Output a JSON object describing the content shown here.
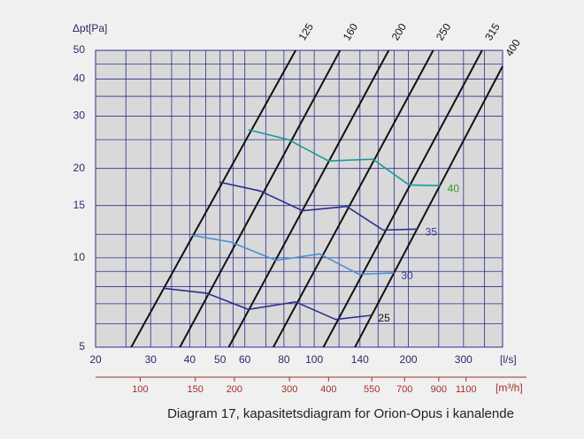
{
  "chart_data": {
    "type": "line",
    "ylabel": "Δpt[Pa]",
    "xlabel": "[l/s]",
    "x2label": "[m³/h]",
    "caption": "Diagram 17, kapasitetsdiagram for Orion-Opus i kanalende",
    "log_x": true,
    "log_y": true,
    "grid": true,
    "xlim": [
      20,
      400
    ],
    "xticks": [
      20,
      30,
      40,
      50,
      60,
      80,
      100,
      140,
      200,
      300
    ],
    "xgrid": [
      25,
      35,
      45,
      55,
      70,
      90,
      120,
      160,
      180,
      250,
      350
    ],
    "x2lim": [
      72,
      1440
    ],
    "x2ticks": [
      100,
      150,
      200,
      300,
      400,
      550,
      700,
      900,
      1100
    ],
    "ylim": [
      5,
      50
    ],
    "yticks": [
      5,
      10,
      15,
      20,
      30,
      40,
      50
    ],
    "ygrid": [
      6,
      7,
      8,
      9,
      12,
      25,
      35,
      45
    ],
    "series": [
      {
        "name": "125",
        "color": "#111111",
        "x": [
          26.0,
          87.2
        ],
        "y": [
          5,
          50
        ]
      },
      {
        "name": "160",
        "color": "#111111",
        "x": [
          37.2,
          121
        ],
        "y": [
          5,
          50
        ]
      },
      {
        "name": "200",
        "color": "#111111",
        "x": [
          53.3,
          173
        ],
        "y": [
          5,
          50
        ]
      },
      {
        "name": "250",
        "color": "#111111",
        "x": [
          74,
          240
        ],
        "y": [
          5,
          50
        ]
      },
      {
        "name": "315",
        "color": "#111111",
        "x": [
          107,
          344
        ],
        "y": [
          5,
          50
        ]
      },
      {
        "name": "400",
        "color": "#111111",
        "x": [
          135,
          400
        ],
        "y": [
          5,
          44.2
        ]
      },
      {
        "name": "25",
        "color": "#2b2f8f",
        "label_color": "#111111",
        "x": [
          32.9,
          45.3,
          61.6,
          87.2,
          117,
          152
        ],
        "y": [
          7.9,
          7.6,
          6.7,
          7.1,
          6.2,
          6.4
        ]
      },
      {
        "name": "30",
        "color": "#4a8fd4",
        "label_color": "#3a3a9a",
        "x": [
          40.8,
          54.1,
          75.5,
          104,
          139,
          180
        ],
        "y": [
          11.9,
          11.3,
          9.8,
          10.3,
          8.8,
          8.9
        ]
      },
      {
        "name": "35",
        "color": "#2b2f8f",
        "label_color": "#3a3a9a",
        "x": [
          49.7,
          67.1,
          91.8,
          127,
          166,
          215
        ],
        "y": [
          18.0,
          16.8,
          14.4,
          14.9,
          12.4,
          12.5
        ]
      },
      {
        "name": "40",
        "color": "#1a9999",
        "label_color": "#2e9a2e",
        "x": [
          61.6,
          82.7,
          111,
          154,
          201,
          253
        ],
        "y": [
          27.0,
          25.0,
          21.2,
          21.5,
          17.6,
          17.5
        ]
      }
    ]
  }
}
